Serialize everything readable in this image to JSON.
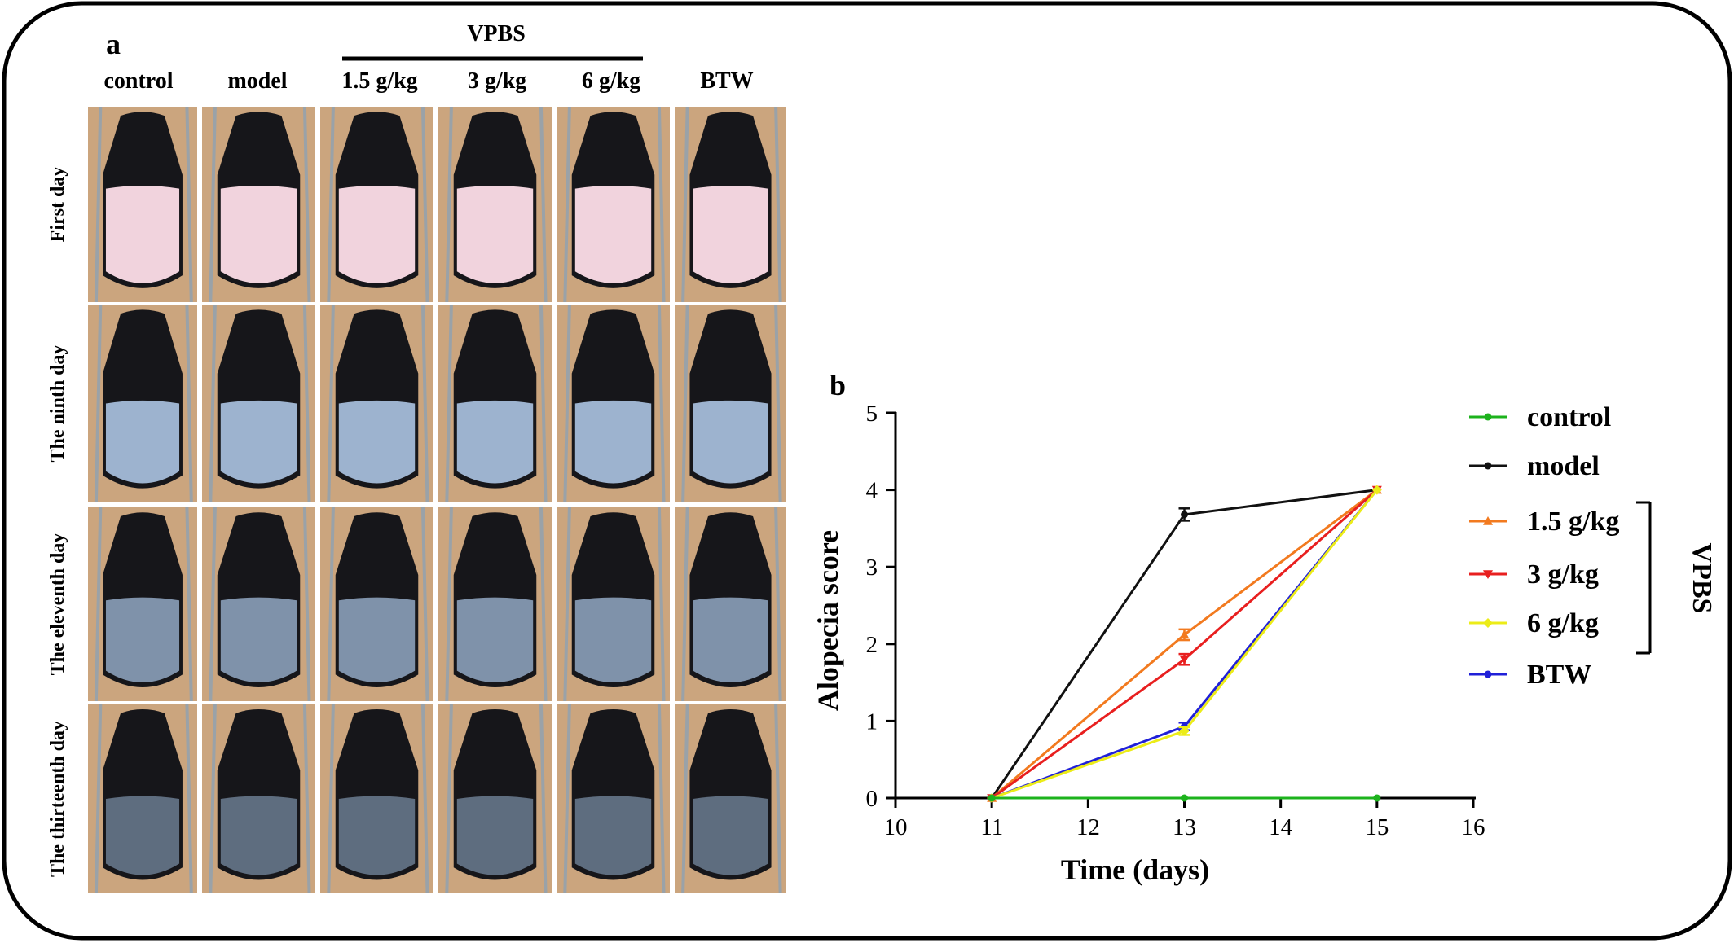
{
  "panel_a": {
    "label": "a",
    "group_label": "VPBS",
    "columns": [
      "control",
      "model",
      "1.5 g/kg",
      "3 g/kg",
      "6 g/kg",
      "BTW"
    ],
    "rows": [
      "First day",
      "The ninth day",
      "The eleventh day",
      "The thirteenth day"
    ]
  },
  "panel_b": {
    "label": "b",
    "legend_group_label": "VPBS"
  },
  "chart_data": {
    "type": "line",
    "title": "",
    "xlabel": "Time (days)",
    "ylabel": "Alopecia score",
    "xlim": [
      10,
      16
    ],
    "ylim": [
      0,
      5
    ],
    "x_ticks": [
      "10",
      "11",
      "12",
      "13",
      "14",
      "15",
      "16"
    ],
    "y_ticks": [
      "0",
      "1",
      "2",
      "3",
      "4",
      "5"
    ],
    "grid": false,
    "legend_position": "right",
    "x": [
      11,
      13,
      15
    ],
    "series": [
      {
        "name": "control",
        "color": "#1db31d",
        "marker": "circle",
        "values": [
          0,
          0,
          0
        ],
        "errors": [
          0,
          0,
          0
        ]
      },
      {
        "name": "model",
        "color": "#111111",
        "marker": "circle",
        "values": [
          0,
          3.68,
          4
        ],
        "errors": [
          0,
          0.08,
          0
        ]
      },
      {
        "name": "1.5 g/kg",
        "color": "#f27a1f",
        "marker": "triangle-up",
        "values": [
          0,
          2.12,
          4
        ],
        "errors": [
          0,
          0.07,
          0
        ]
      },
      {
        "name": "3 g/kg",
        "color": "#e81f1f",
        "marker": "triangle-down",
        "values": [
          0,
          1.8,
          4
        ],
        "errors": [
          0,
          0.07,
          0
        ]
      },
      {
        "name": "6 g/kg",
        "color": "#ecec18",
        "marker": "diamond",
        "values": [
          0,
          0.87,
          4
        ],
        "errors": [
          0,
          0.05,
          0
        ]
      },
      {
        "name": "BTW",
        "color": "#2020d8",
        "marker": "circle",
        "values": [
          0,
          0.93,
          4
        ],
        "errors": [
          0,
          0.05,
          0
        ]
      }
    ]
  }
}
